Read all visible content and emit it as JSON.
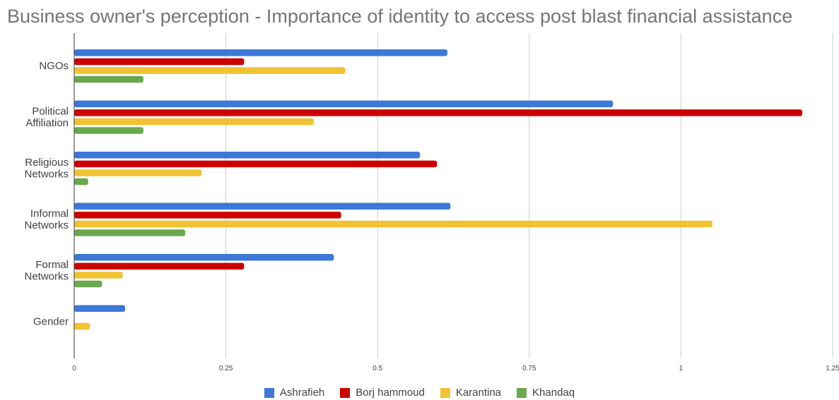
{
  "title": "Business owner's perception - Importance of identity to access post blast financial assistance",
  "chart_data": {
    "type": "bar",
    "orientation": "horizontal",
    "categories": [
      "NGOs",
      "Political Affiliation",
      "Religious Networks",
      "Informal Networks",
      "Formal Networks",
      "Gender"
    ],
    "category_lines": [
      [
        "NGOs"
      ],
      [
        "Political",
        "Affiliation"
      ],
      [
        "Religious",
        "Networks"
      ],
      [
        "Informal",
        "Networks"
      ],
      [
        "Formal",
        "Networks"
      ],
      [
        "Gender"
      ]
    ],
    "series": [
      {
        "name": "Ashrafieh",
        "color": "#3c78d8",
        "values": [
          0.615,
          0.888,
          0.57,
          0.62,
          0.428,
          0.084
        ]
      },
      {
        "name": "Borj hammoud",
        "color": "#cc0000",
        "values": [
          0.28,
          1.2,
          0.598,
          0.44,
          0.28,
          0
        ]
      },
      {
        "name": "Karantina",
        "color": "#f1c232",
        "values": [
          0.447,
          0.395,
          0.21,
          1.052,
          0.08,
          0.026
        ]
      },
      {
        "name": "Khandaq",
        "color": "#6aa84f",
        "values": [
          0.114,
          0.114,
          0.023,
          0.183,
          0.046,
          0
        ]
      }
    ],
    "xticks": [
      0,
      0.25,
      0.5,
      0.75,
      1,
      1.25
    ],
    "xtick_labels": [
      "0",
      "0.25",
      "0.5",
      "0.75",
      "1",
      "1.25"
    ],
    "xlim": [
      0,
      1.25
    ],
    "grid": true,
    "legend_position": "bottom",
    "xlabel": "",
    "ylabel": ""
  }
}
